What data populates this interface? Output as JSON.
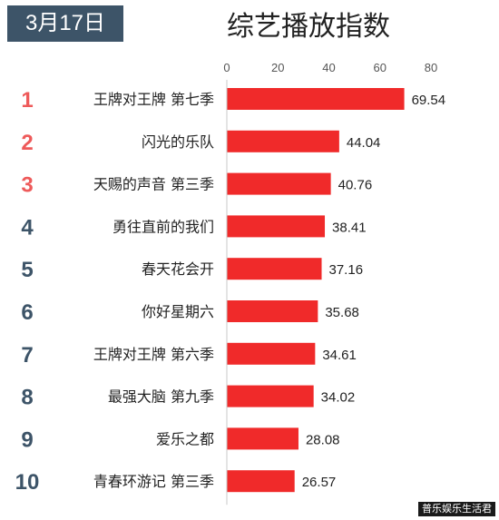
{
  "header": {
    "date": "3月17日",
    "title": "综艺播放指数"
  },
  "watermark": "普乐娱乐生活君",
  "colors": {
    "bar": "#f02a2a",
    "top_rank": "#ee5a5a",
    "rank": "#3d5468",
    "badge_bg": "#3d5468"
  },
  "chart_data": {
    "type": "bar",
    "orientation": "horizontal",
    "title": "综艺播放指数",
    "xlim": [
      0,
      80
    ],
    "xticks": [
      0,
      20,
      40,
      60,
      80
    ],
    "xticks_position": "top",
    "grid": false,
    "ranks": [
      "1",
      "2",
      "3",
      "4",
      "5",
      "6",
      "7",
      "8",
      "9",
      "10"
    ],
    "categories": [
      "王牌对王牌 第七季",
      "闪光的乐队",
      "天赐的声音 第三季",
      "勇往直前的我们",
      "春天花会开",
      "你好星期六",
      "王牌对王牌 第六季",
      "最强大脑 第九季",
      "爱乐之都",
      "青春环游记 第三季"
    ],
    "values": [
      69.54,
      44.04,
      40.76,
      38.41,
      37.16,
      35.68,
      34.61,
      34.02,
      28.08,
      26.57
    ],
    "value_labels": [
      "69.54",
      "44.04",
      "40.76",
      "38.41",
      "37.16",
      "35.68",
      "34.61",
      "34.02",
      "28.08",
      "26.57"
    ]
  }
}
